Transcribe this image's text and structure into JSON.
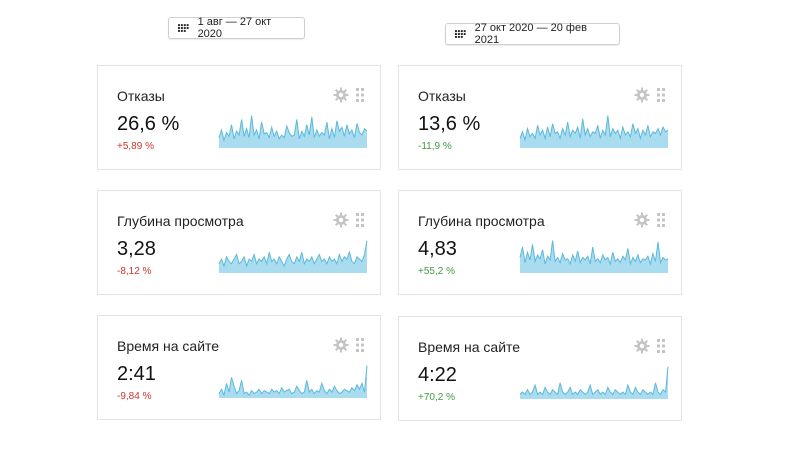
{
  "periods": [
    {
      "label": "1 авг — 27 окт 2020",
      "icon": "calendar-icon",
      "cards": [
        {
          "title": "Отказы",
          "value": "26,6 %",
          "delta": "+5,89 %",
          "trend": "negative",
          "series": [
            8,
            14,
            6,
            12,
            9,
            18,
            7,
            13,
            10,
            22,
            9,
            15,
            8,
            25,
            10,
            14,
            7,
            20,
            11,
            12,
            8,
            16,
            9,
            13,
            7,
            10,
            8,
            17,
            12,
            9,
            10,
            22,
            7,
            13,
            9,
            18,
            10,
            24,
            8,
            14,
            9,
            12,
            10,
            20,
            7,
            15,
            8,
            21,
            13,
            16,
            9,
            18,
            11,
            14,
            8,
            19,
            12,
            10,
            15,
            13
          ]
        },
        {
          "title": "Глубина просмотра",
          "value": "3,28",
          "delta": "-8,12 %",
          "trend": "negative",
          "series": [
            4,
            6,
            3,
            7,
            5,
            4,
            6,
            8,
            4,
            5,
            7,
            3,
            6,
            5,
            8,
            4,
            6,
            5,
            7,
            4,
            9,
            5,
            6,
            4,
            7,
            5,
            3,
            6,
            8,
            5,
            4,
            7,
            5,
            9,
            4,
            6,
            5,
            7,
            4,
            6,
            8,
            5,
            6,
            4,
            7,
            5,
            6,
            4,
            8,
            5,
            7,
            6,
            9,
            5,
            4,
            7,
            6,
            5,
            8,
            14
          ]
        },
        {
          "title": "Время на сайте",
          "value": "2:41",
          "delta": "-9,84 %",
          "trend": "negative",
          "series": [
            3,
            6,
            2,
            10,
            4,
            14,
            8,
            3,
            5,
            12,
            3,
            4,
            2,
            5,
            3,
            4,
            6,
            3,
            5,
            4,
            3,
            6,
            4,
            5,
            3,
            7,
            4,
            5,
            6,
            3,
            4,
            8,
            5,
            3,
            4,
            12,
            4,
            6,
            3,
            5,
            4,
            10,
            5,
            3,
            6,
            4,
            8,
            5,
            3,
            4,
            6,
            5,
            4,
            7,
            5,
            9,
            6,
            10,
            4,
            22
          ]
        }
      ]
    },
    {
      "label": "27 окт 2020 — 20 фев 2021",
      "icon": "calendar-icon",
      "cards": [
        {
          "title": "Отказы",
          "value": "13,6 %",
          "delta": "-11,9 %",
          "trend": "positive",
          "series": [
            6,
            10,
            5,
            12,
            7,
            9,
            6,
            14,
            8,
            11,
            6,
            13,
            7,
            15,
            9,
            10,
            6,
            12,
            8,
            16,
            7,
            11,
            9,
            13,
            6,
            18,
            8,
            12,
            7,
            10,
            9,
            14,
            6,
            11,
            8,
            20,
            7,
            12,
            9,
            11,
            6,
            13,
            8,
            10,
            7,
            15,
            9,
            12,
            6,
            11,
            8,
            14,
            7,
            10,
            9,
            12,
            8,
            13,
            10,
            11
          ]
        },
        {
          "title": "Глубина просмотра",
          "value": "4,83",
          "delta": "+55,2 %",
          "trend": "positive",
          "series": [
            12,
            20,
            8,
            16,
            10,
            22,
            9,
            14,
            11,
            18,
            7,
            13,
            10,
            25,
            9,
            12,
            8,
            15,
            10,
            11,
            7,
            14,
            9,
            17,
            8,
            12,
            10,
            13,
            7,
            20,
            9,
            11,
            8,
            14,
            10,
            12,
            7,
            16,
            9,
            11,
            8,
            13,
            10,
            19,
            7,
            12,
            9,
            14,
            8,
            11,
            10,
            13,
            7,
            15,
            9,
            24,
            8,
            12,
            10,
            11
          ]
        },
        {
          "title": "Время на сайте",
          "value": "4:22",
          "delta": "+70,2 %",
          "trend": "positive",
          "series": [
            2,
            3,
            2,
            4,
            2,
            3,
            6,
            2,
            3,
            2,
            5,
            3,
            2,
            4,
            3,
            2,
            7,
            3,
            2,
            3,
            5,
            2,
            3,
            2,
            4,
            3,
            2,
            3,
            6,
            2,
            3,
            4,
            2,
            3,
            2,
            5,
            3,
            2,
            4,
            3,
            2,
            3,
            2,
            6,
            3,
            2,
            5,
            3,
            2,
            4,
            3,
            2,
            3,
            2,
            7,
            3,
            2,
            4,
            3,
            14
          ]
        }
      ]
    }
  ],
  "colors": {
    "accent": "#5bb9dc",
    "fill": "#a9dcef",
    "negative": "#d0342c",
    "positive": "#3e9a3e",
    "icon": "#c4c4c4"
  }
}
